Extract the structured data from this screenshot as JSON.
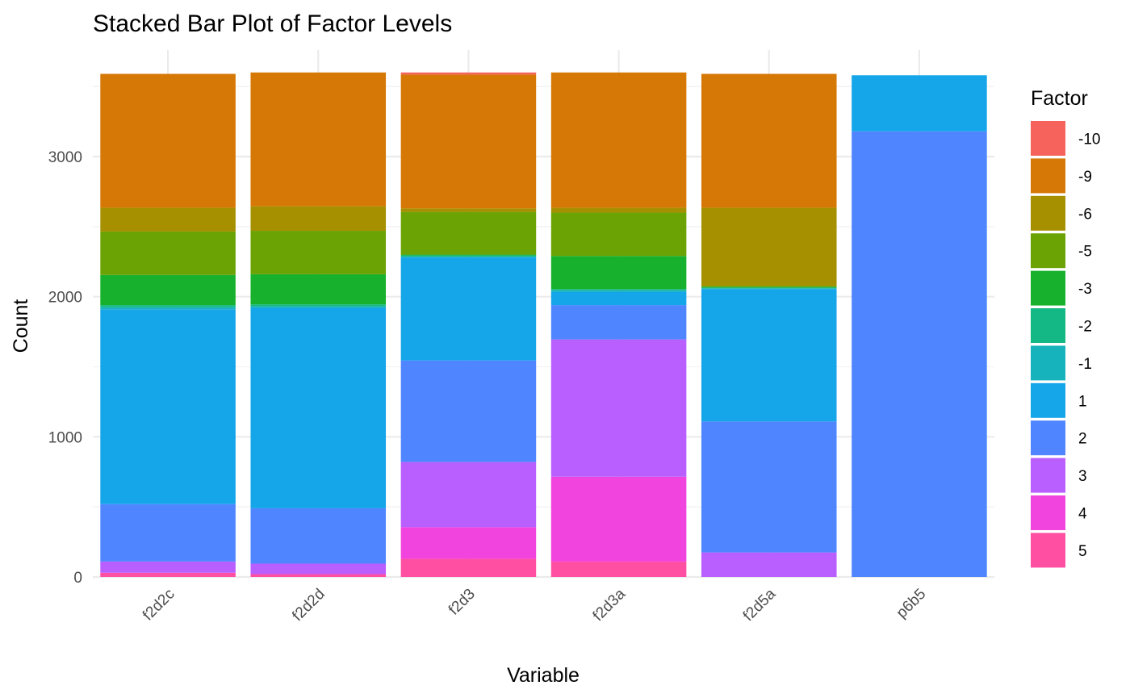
{
  "chart_data": {
    "type": "bar",
    "stacked": true,
    "title": "Stacked Bar Plot of Factor Levels",
    "xlabel": "Variable",
    "ylabel": "Count",
    "ylim": [
      0,
      3600
    ],
    "yticks": [
      0,
      1000,
      2000,
      3000
    ],
    "grid": true,
    "legend": {
      "title": "Factor",
      "position": "right"
    },
    "categories": [
      "f2d2c",
      "f2d2d",
      "f2d3",
      "f2d3a",
      "f2d5a",
      "p6b5"
    ],
    "series": [
      {
        "name": "5",
        "color": "#FF4FA3",
        "values": [
          30,
          20,
          130,
          110,
          0,
          0
        ]
      },
      {
        "name": "4",
        "color": "#F143DD",
        "values": [
          0,
          0,
          225,
          605,
          0,
          0
        ]
      },
      {
        "name": "3",
        "color": "#B95EFF",
        "values": [
          80,
          75,
          465,
          980,
          175,
          0
        ]
      },
      {
        "name": "2",
        "color": "#4F86FF",
        "values": [
          410,
          395,
          725,
          245,
          935,
          3180
        ]
      },
      {
        "name": "1",
        "color": "#15A5E9",
        "values": [
          1390,
          1430,
          735,
          95,
          945,
          400
        ]
      },
      {
        "name": "-1",
        "color": "#17B3BC",
        "values": [
          15,
          10,
          5,
          10,
          5,
          0
        ]
      },
      {
        "name": "-2",
        "color": "#14B884",
        "values": [
          15,
          15,
          10,
          10,
          5,
          0
        ]
      },
      {
        "name": "-3",
        "color": "#17B12D",
        "values": [
          215,
          215,
          5,
          235,
          5,
          0
        ]
      },
      {
        "name": "-5",
        "color": "#6BA305",
        "values": [
          310,
          310,
          305,
          310,
          5,
          0
        ]
      },
      {
        "name": "-6",
        "color": "#A69000",
        "values": [
          170,
          175,
          25,
          35,
          560,
          0
        ]
      },
      {
        "name": "-9",
        "color": "#D67805",
        "values": [
          955,
          955,
          955,
          965,
          955,
          0
        ]
      },
      {
        "name": "-10",
        "color": "#F5635C",
        "values": [
          0,
          0,
          15,
          0,
          0,
          0
        ]
      }
    ]
  }
}
